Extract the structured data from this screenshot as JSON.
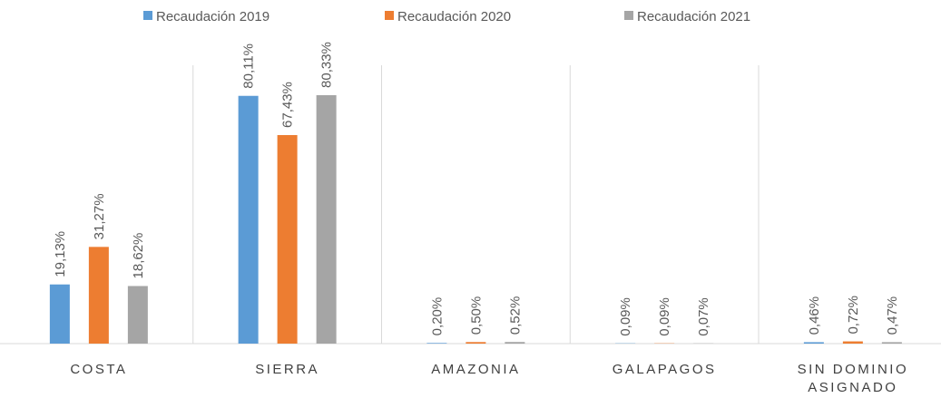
{
  "chart_data": {
    "type": "bar",
    "categories": [
      "COSTA",
      "SIERRA",
      "AMAZONIA",
      "GALAPAGOS",
      "SIN DOMINIO ASIGNADO"
    ],
    "series": [
      {
        "name": "Recaudación 2019",
        "color": "#5b9bd5",
        "values": [
          19.13,
          80.11,
          0.2,
          0.09,
          0.46
        ],
        "value_labels": [
          "19,13%",
          "80,11%",
          "0,20%",
          "0,09%",
          "0,46%"
        ]
      },
      {
        "name": "Recaudación 2020",
        "color": "#ed7d31",
        "values": [
          31.27,
          67.43,
          0.5,
          0.09,
          0.72
        ],
        "value_labels": [
          "31,27%",
          "67,43%",
          "0,50%",
          "0,09%",
          "0,72%"
        ]
      },
      {
        "name": "Recaudación 2021",
        "color": "#a5a5a5",
        "values": [
          18.62,
          80.33,
          0.52,
          0.07,
          0.47
        ],
        "value_labels": [
          "18,62%",
          "80,33%",
          "0,52%",
          "0,07%",
          "0,47%"
        ]
      }
    ],
    "ylim": [
      0,
      90
    ],
    "legend": "top"
  }
}
